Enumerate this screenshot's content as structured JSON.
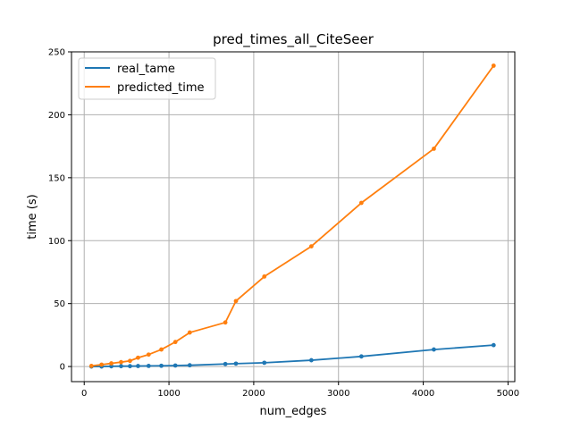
{
  "chart_data": {
    "type": "line",
    "title": "pred_times_all_CiteSeer",
    "xlabel": "num_edges",
    "ylabel": "time (s)",
    "xlim": [
      -150,
      5080
    ],
    "ylim": [
      -12,
      250
    ],
    "xticks": [
      0,
      1000,
      2000,
      3000,
      4000,
      5000
    ],
    "yticks": [
      0,
      50,
      100,
      150,
      200,
      250
    ],
    "grid": true,
    "legend_position": "top-left",
    "series": [
      {
        "name": "real_tame",
        "color": "#1f77b4",
        "x": [
          85,
          205,
          320,
          435,
          540,
          635,
          760,
          910,
          1075,
          1245,
          1665,
          1790,
          2125,
          2680,
          3270,
          4125,
          4830
        ],
        "y": [
          0,
          0,
          0.2,
          0.3,
          0.3,
          0.4,
          0.5,
          0.6,
          0.8,
          1.0,
          2.0,
          2.3,
          3.0,
          5.0,
          8.0,
          13.5,
          17.0
        ]
      },
      {
        "name": "predicted_time",
        "color": "#ff7f0e",
        "x": [
          85,
          205,
          320,
          435,
          540,
          635,
          760,
          910,
          1075,
          1245,
          1665,
          1790,
          2125,
          2680,
          3270,
          4125,
          4830
        ],
        "y": [
          0.5,
          1.5,
          2.5,
          3.5,
          4.5,
          7.0,
          9.5,
          13.5,
          19.5,
          27.0,
          35.0,
          52.0,
          71.5,
          95.5,
          130.0,
          173.0,
          239.0
        ]
      }
    ]
  }
}
